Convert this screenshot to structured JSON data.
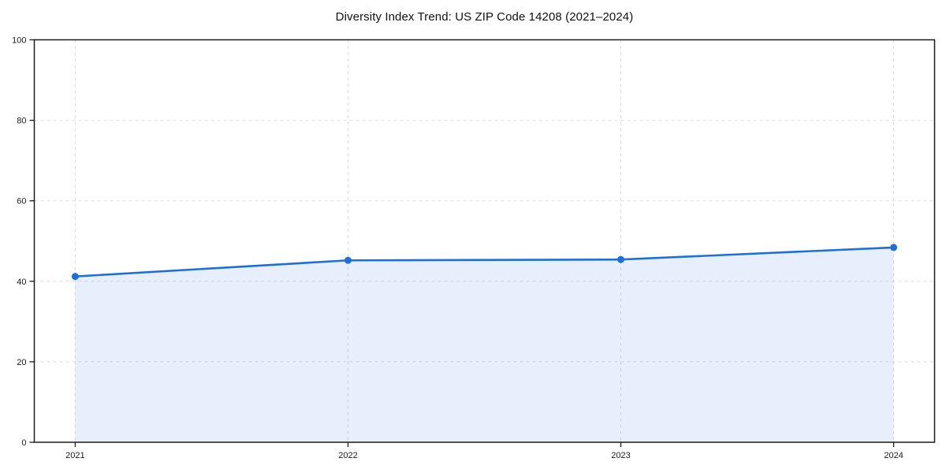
{
  "figure": {
    "title": "Diversity Index Trend: US ZIP Code 14208 (2021–2024)"
  },
  "chart_data": {
    "type": "area",
    "title": "Diversity Index Trend: US ZIP Code 14208 (2021–2024)",
    "x": [
      2021,
      2022,
      2023,
      2024
    ],
    "series": [
      {
        "name": "Diversity Index",
        "values": [
          41.2,
          45.2,
          45.4,
          48.4
        ]
      }
    ],
    "xlabel": "",
    "ylabel": "",
    "xlim": [
      2020.85,
      2024.15
    ],
    "ylim": [
      0,
      100
    ],
    "xticks": [
      2021,
      2022,
      2023,
      2024
    ],
    "xtick_labels": [
      "2021",
      "2022",
      "2023",
      "2024"
    ],
    "yticks": [
      0,
      20,
      40,
      60,
      80,
      100
    ],
    "ytick_labels": [
      "0",
      "20",
      "40",
      "60",
      "80",
      "100"
    ],
    "grid": {
      "visible": true,
      "style": "dashed",
      "axes": "both"
    },
    "legend": {
      "visible": false
    },
    "marker": {
      "shape": "circle",
      "radius": 4.5
    },
    "colors": {
      "line": "#1f6fdb",
      "marker": "#1f6fdb",
      "fill": "#1f6fdb",
      "fill_opacity": 0.11,
      "grid": "#dbdbdb",
      "frame": "#1a1a1a",
      "tick_text": "#1a1a1a",
      "background": "#ffffff"
    }
  }
}
